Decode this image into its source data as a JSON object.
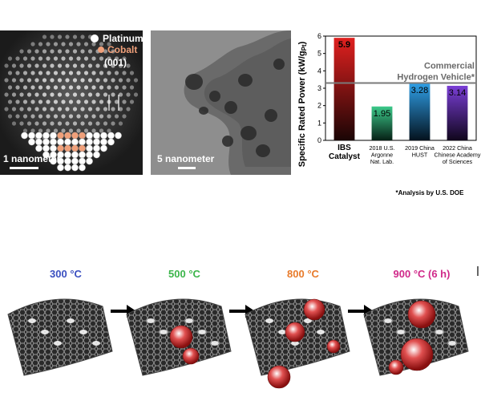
{
  "stem_panel": {
    "legend_platinum": "Platinum",
    "legend_cobalt": "Cobalt",
    "facet_label": "(001)",
    "scale_label": "1 nanometer",
    "colors": {
      "platinum": "#ffffff",
      "cobalt": "#f0a07a"
    }
  },
  "tem_panel": {
    "scale_label": "5 nanometer"
  },
  "chart_data": {
    "type": "bar",
    "ylabel": "Specific Rated Power (kW/g_Pt)",
    "ylim": [
      0,
      6
    ],
    "yticks": [
      0,
      1,
      2,
      3,
      4,
      5,
      6
    ],
    "categories": [
      {
        "lines": [
          "IBS",
          "Catalyst"
        ],
        "bold": true
      },
      {
        "lines": [
          "2018 U.S.",
          "Argonne",
          "Nat. Lab."
        ],
        "bold": false
      },
      {
        "lines": [
          "2019 China",
          "HUST"
        ],
        "bold": false
      },
      {
        "lines": [
          "2022 China",
          "Chinese Academy",
          "of Sciences"
        ],
        "bold": false
      }
    ],
    "values": [
      5.9,
      1.95,
      3.28,
      3.14
    ],
    "value_labels": [
      "5.9",
      "1.95",
      "3.28",
      "3.14"
    ],
    "bar_colors": [
      "#e0201f",
      "#3cc98a",
      "#2f9fe6",
      "#7a3ed6"
    ],
    "reference_line": {
      "value": 3.3,
      "label_lines": [
        "Commercial",
        "Hydrogen Vehicle*"
      ]
    },
    "footnote": "*Analysis by U.S. DOE"
  },
  "temperatures": [
    {
      "label": "300 °C",
      "color": "#3a4fc0"
    },
    {
      "label": "500 °C",
      "color": "#3bb54a"
    },
    {
      "label": "800 °C",
      "color": "#e87a2a"
    },
    {
      "label": "900 °C (6 h)",
      "color": "#d02a8a"
    }
  ]
}
